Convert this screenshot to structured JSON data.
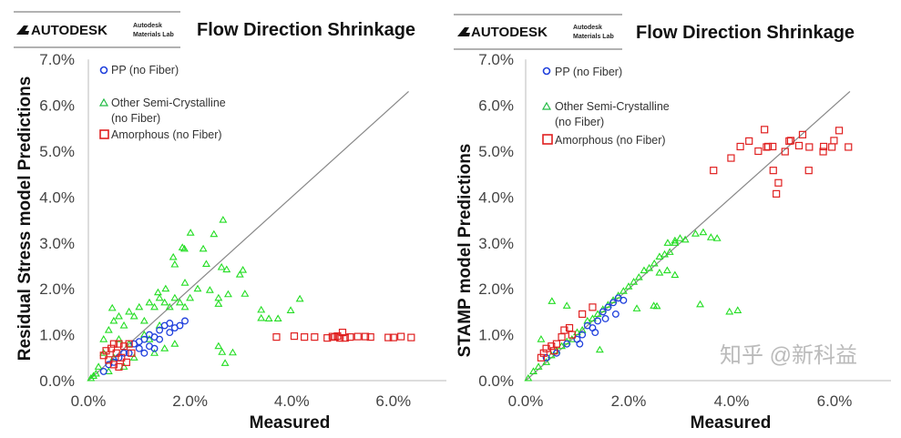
{
  "watermark": "知乎 @新科益",
  "colors": {
    "pp": "#1f3fdc",
    "semi": "#22dd22",
    "amorphous": "#e02020",
    "diagonal": "#888888",
    "axis": "#bbbbbb"
  },
  "chart_data": [
    {
      "type": "scatter",
      "logo": "AUTODESK",
      "lab": [
        "Autodesk",
        "Materials Lab"
      ],
      "title": "Flow Direction Shrinkage",
      "xlabel": "Measured",
      "ylabel": "Residual Stress model Predictions",
      "xlim": [
        0,
        7
      ],
      "ylim": [
        0,
        7
      ],
      "xticks": [
        "0.0%",
        "2.0%",
        "4.0%",
        "6.0%"
      ],
      "xtick_values": [
        0,
        2,
        4,
        6
      ],
      "yticks": [
        "0.0%",
        "1.0%",
        "2.0%",
        "3.0%",
        "4.0%",
        "5.0%",
        "6.0%",
        "7.0%"
      ],
      "ytick_values": [
        0,
        1,
        2,
        3,
        4,
        5,
        6,
        7
      ],
      "grid": false,
      "legend_position": "top-left",
      "reference_line": {
        "from": [
          0,
          0
        ],
        "to": [
          6.3,
          6.3
        ]
      },
      "series": [
        {
          "name": "Other Semi-Crystalline",
          "name2": "(no Fiber)",
          "marker": "triangle",
          "points": [
            [
              2.65,
              3.5
            ],
            [
              2.01,
              3.22
            ],
            [
              2.47,
              3.19
            ],
            [
              1.85,
              2.9
            ],
            [
              1.89,
              2.87
            ],
            [
              2.26,
              2.87
            ],
            [
              1.67,
              2.69
            ],
            [
              1.7,
              2.53
            ],
            [
              2.32,
              2.54
            ],
            [
              2.62,
              2.47
            ],
            [
              2.72,
              2.42
            ],
            [
              3.04,
              2.41
            ],
            [
              2.98,
              2.31
            ],
            [
              1.9,
              2.13
            ],
            [
              2.15,
              2.0
            ],
            [
              2.39,
              1.97
            ],
            [
              2.56,
              1.8
            ],
            [
              2.56,
              1.67
            ],
            [
              2.75,
              1.88
            ],
            [
              3.08,
              1.89
            ],
            [
              4.16,
              1.78
            ],
            [
              3.98,
              1.53
            ],
            [
              3.4,
              1.54
            ],
            [
              3.4,
              1.36
            ],
            [
              3.55,
              1.35
            ],
            [
              3.73,
              1.35
            ],
            [
              2.56,
              0.75
            ],
            [
              2.63,
              0.62
            ],
            [
              2.84,
              0.61
            ],
            [
              2.69,
              0.38
            ],
            [
              0.47,
              1.58
            ],
            [
              1.37,
              1.92
            ],
            [
              1.52,
              2.0
            ],
            [
              0.1,
              0.1
            ],
            [
              0.2,
              0.3
            ],
            [
              0.3,
              0.6
            ],
            [
              0.3,
              0.9
            ],
            [
              0.4,
              1.1
            ],
            [
              0.5,
              1.3
            ],
            [
              0.6,
              1.4
            ],
            [
              0.6,
              0.9
            ],
            [
              0.7,
              1.2
            ],
            [
              0.8,
              1.5
            ],
            [
              0.9,
              1.4
            ],
            [
              1.0,
              1.6
            ],
            [
              1.1,
              1.3
            ],
            [
              1.2,
              1.7
            ],
            [
              1.3,
              1.6
            ],
            [
              1.4,
              1.8
            ],
            [
              1.5,
              1.7
            ],
            [
              1.6,
              1.6
            ],
            [
              1.7,
              1.8
            ],
            [
              1.8,
              1.7
            ],
            [
              1.9,
              1.6
            ],
            [
              2.0,
              1.8
            ],
            [
              1.5,
              0.7
            ],
            [
              1.7,
              0.8
            ],
            [
              1.2,
              0.9
            ],
            [
              0.9,
              0.5
            ],
            [
              0.7,
              0.3
            ],
            [
              1.3,
              0.6
            ],
            [
              0.5,
              0.5
            ],
            [
              0.4,
              0.2
            ],
            [
              1.1,
              1.0
            ],
            [
              1.4,
              1.2
            ],
            [
              0.8,
              0.8
            ],
            [
              0.05,
              0.05
            ],
            [
              0.15,
              0.15
            ]
          ]
        },
        {
          "name": "PP (no Fiber)",
          "marker": "circle",
          "points": [
            [
              0.3,
              0.2
            ],
            [
              0.4,
              0.35
            ],
            [
              0.5,
              0.4
            ],
            [
              0.6,
              0.5
            ],
            [
              0.7,
              0.6
            ],
            [
              0.8,
              0.6
            ],
            [
              0.9,
              0.8
            ],
            [
              1.0,
              0.85
            ],
            [
              1.0,
              0.7
            ],
            [
              1.1,
              0.9
            ],
            [
              1.2,
              1.0
            ],
            [
              1.2,
              0.75
            ],
            [
              1.3,
              0.95
            ],
            [
              1.4,
              1.1
            ],
            [
              1.4,
              0.9
            ],
            [
              1.5,
              1.2
            ],
            [
              1.6,
              1.05
            ],
            [
              1.6,
              1.25
            ],
            [
              1.7,
              1.15
            ],
            [
              1.8,
              1.2
            ],
            [
              1.9,
              1.3
            ],
            [
              1.3,
              0.7
            ],
            [
              1.1,
              0.6
            ]
          ]
        },
        {
          "name": "Amorphous (no Fiber)",
          "marker": "square",
          "points": [
            [
              0.3,
              0.55
            ],
            [
              0.35,
              0.65
            ],
            [
              0.4,
              0.45
            ],
            [
              0.45,
              0.7
            ],
            [
              0.5,
              0.35
            ],
            [
              0.55,
              0.6
            ],
            [
              0.6,
              0.3
            ],
            [
              0.65,
              0.5
            ],
            [
              0.7,
              0.75
            ],
            [
              0.75,
              0.4
            ],
            [
              0.8,
              0.8
            ],
            [
              0.85,
              0.6
            ],
            [
              0.5,
              0.8
            ],
            [
              0.6,
              0.8
            ],
            [
              3.7,
              0.95
            ],
            [
              4.05,
              0.97
            ],
            [
              4.25,
              0.95
            ],
            [
              4.45,
              0.95
            ],
            [
              4.7,
              0.93
            ],
            [
              4.8,
              0.96
            ],
            [
              4.85,
              0.95
            ],
            [
              4.9,
              0.97
            ],
            [
              4.95,
              0.93
            ],
            [
              5.0,
              1.05
            ],
            [
              5.05,
              0.93
            ],
            [
              5.15,
              0.95
            ],
            [
              5.3,
              0.96
            ],
            [
              5.45,
              0.96
            ],
            [
              5.55,
              0.95
            ],
            [
              5.9,
              0.94
            ],
            [
              6.0,
              0.94
            ],
            [
              6.15,
              0.96
            ],
            [
              6.35,
              0.94
            ]
          ]
        }
      ]
    },
    {
      "type": "scatter",
      "logo": "AUTODESK",
      "lab": [
        "Autodesk",
        "Materials Lab"
      ],
      "title": "Flow Direction Shrinkage",
      "xlabel": "Measured",
      "ylabel": "STAMP model Predictions",
      "xlim": [
        0,
        7
      ],
      "ylim": [
        0,
        7
      ],
      "xticks": [
        "0.0%",
        "2.0%",
        "4.0%",
        "6.0%"
      ],
      "xtick_values": [
        0,
        2,
        4,
        6
      ],
      "yticks": [
        "0.0%",
        "1.0%",
        "2.0%",
        "3.0%",
        "4.0%",
        "5.0%",
        "6.0%",
        "7.0%"
      ],
      "ytick_values": [
        0,
        1,
        2,
        3,
        4,
        5,
        6,
        7
      ],
      "grid": false,
      "legend_position": "top-left",
      "reference_line": {
        "from": [
          0,
          0
        ],
        "to": [
          6.3,
          6.3
        ]
      },
      "series": [
        {
          "name": "Other Semi-Crystalline",
          "name2": "(no Fiber)",
          "marker": "triangle",
          "points": [
            [
              0.05,
              0.05
            ],
            [
              0.15,
              0.2
            ],
            [
              0.25,
              0.3
            ],
            [
              0.3,
              0.9
            ],
            [
              0.4,
              0.4
            ],
            [
              0.5,
              0.55
            ],
            [
              0.6,
              0.65
            ],
            [
              0.7,
              0.75
            ],
            [
              0.8,
              0.85
            ],
            [
              0.9,
              0.9
            ],
            [
              1.0,
              1.05
            ],
            [
              1.1,
              1.1
            ],
            [
              1.2,
              1.3
            ],
            [
              1.3,
              1.35
            ],
            [
              1.4,
              1.45
            ],
            [
              1.5,
              1.55
            ],
            [
              1.6,
              1.65
            ],
            [
              1.7,
              1.75
            ],
            [
              1.8,
              1.85
            ],
            [
              1.9,
              1.95
            ],
            [
              2.0,
              2.05
            ],
            [
              2.1,
              2.15
            ],
            [
              2.2,
              2.25
            ],
            [
              2.3,
              2.4
            ],
            [
              2.4,
              2.45
            ],
            [
              2.5,
              2.55
            ],
            [
              2.6,
              2.7
            ],
            [
              2.7,
              2.75
            ],
            [
              2.8,
              2.8
            ],
            [
              2.9,
              3.0
            ],
            [
              3.0,
              3.1
            ],
            [
              0.51,
              1.73
            ],
            [
              0.8,
              1.63
            ],
            [
              2.16,
              1.57
            ],
            [
              2.49,
              1.63
            ],
            [
              2.55,
              1.62
            ],
            [
              3.39,
              1.66
            ],
            [
              3.96,
              1.5
            ],
            [
              4.12,
              1.53
            ],
            [
              1.44,
              0.67
            ],
            [
              3.3,
              3.2
            ],
            [
              3.45,
              3.23
            ],
            [
              3.6,
              3.12
            ],
            [
              3.72,
              3.1
            ],
            [
              2.76,
              3.0
            ],
            [
              2.9,
              3.05
            ],
            [
              3.1,
              3.07
            ],
            [
              2.6,
              2.35
            ],
            [
              2.75,
              2.4
            ],
            [
              2.9,
              2.3
            ]
          ]
        },
        {
          "name": "PP (no Fiber)",
          "marker": "circle",
          "points": [
            [
              0.4,
              0.5
            ],
            [
              0.6,
              0.6
            ],
            [
              0.8,
              0.8
            ],
            [
              1.0,
              0.9
            ],
            [
              1.1,
              1.0
            ],
            [
              1.2,
              1.2
            ],
            [
              1.3,
              1.15
            ],
            [
              1.4,
              1.3
            ],
            [
              1.5,
              1.5
            ],
            [
              1.6,
              1.6
            ],
            [
              1.7,
              1.7
            ],
            [
              1.8,
              1.8
            ],
            [
              1.9,
              1.75
            ],
            [
              1.75,
              1.45
            ],
            [
              1.55,
              1.35
            ],
            [
              1.35,
              1.05
            ],
            [
              1.05,
              0.8
            ]
          ]
        },
        {
          "name": "Amorphous (no Fiber)",
          "marker": "square",
          "points": [
            [
              0.3,
              0.5
            ],
            [
              0.35,
              0.6
            ],
            [
              0.4,
              0.7
            ],
            [
              0.5,
              0.75
            ],
            [
              0.6,
              0.8
            ],
            [
              0.7,
              0.95
            ],
            [
              0.75,
              1.1
            ],
            [
              0.85,
              1.15
            ],
            [
              0.9,
              1.0
            ],
            [
              1.1,
              1.45
            ],
            [
              1.3,
              1.6
            ],
            [
              0.55,
              0.65
            ],
            [
              3.65,
              4.58
            ],
            [
              3.99,
              4.85
            ],
            [
              4.17,
              5.1
            ],
            [
              4.34,
              5.22
            ],
            [
              4.52,
              5.0
            ],
            [
              4.64,
              5.47
            ],
            [
              4.68,
              5.09
            ],
            [
              4.71,
              5.1
            ],
            [
              4.8,
              5.1
            ],
            [
              4.81,
              4.58
            ],
            [
              4.87,
              4.07
            ],
            [
              4.91,
              4.31
            ],
            [
              5.04,
              4.99
            ],
            [
              5.12,
              5.22
            ],
            [
              5.15,
              5.23
            ],
            [
              5.31,
              5.12
            ],
            [
              5.38,
              5.36
            ],
            [
              5.51,
              5.09
            ],
            [
              5.5,
              4.58
            ],
            [
              5.78,
              4.99
            ],
            [
              5.79,
              5.1
            ],
            [
              5.95,
              5.09
            ],
            [
              5.99,
              5.23
            ],
            [
              6.09,
              5.45
            ],
            [
              6.27,
              5.09
            ]
          ]
        }
      ]
    }
  ]
}
